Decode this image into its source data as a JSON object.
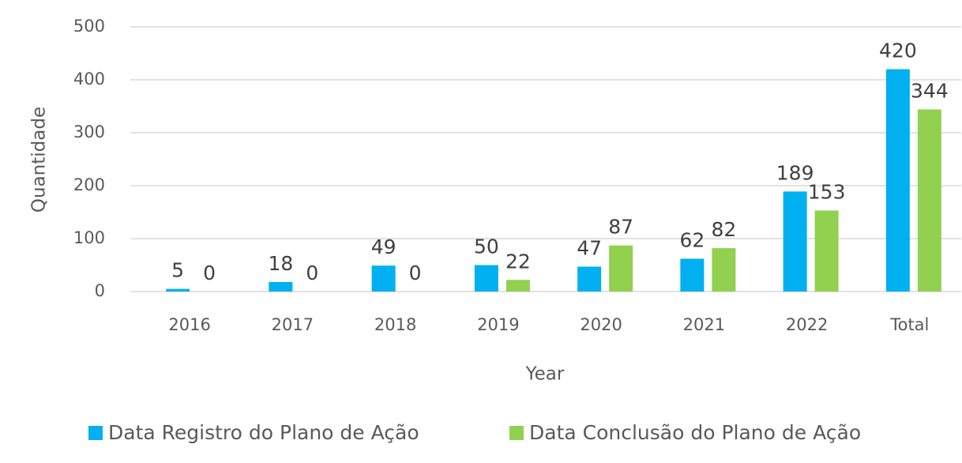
{
  "chart_data": {
    "type": "bar",
    "categories": [
      "2016",
      "2017",
      "2018",
      "2019",
      "2020",
      "2021",
      "2022",
      "Total"
    ],
    "series": [
      {
        "name": "Data Registro do Plano de Ação",
        "color": "#00b0f0",
        "values": [
          5,
          18,
          49,
          50,
          47,
          62,
          189,
          420
        ]
      },
      {
        "name": "Data Conclusão do Plano de Ação",
        "color": "#92d050",
        "values": [
          0,
          0,
          0,
          22,
          87,
          82,
          153,
          344
        ]
      }
    ],
    "xlabel": "Year",
    "ylabel": "Quantidade",
    "ylim": [
      0,
      500
    ],
    "yticks": [
      0,
      100,
      200,
      300,
      400,
      500
    ],
    "grid": true,
    "legend": "bottom"
  }
}
